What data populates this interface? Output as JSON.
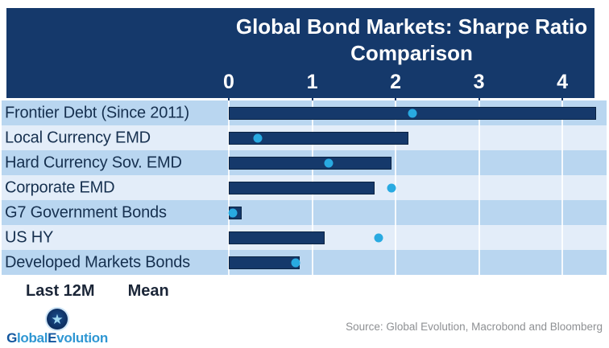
{
  "header": {
    "title_line1": "Global Bond Markets: Sharpe Ratio",
    "title_line2": "Comparison"
  },
  "chart_data": {
    "type": "bar",
    "orientation": "horizontal",
    "title": "Global Bond Markets: Sharpe Ratio Comparison",
    "categories": [
      "Frontier Debt (Since 2011)",
      "Local Currency EMD",
      "Hard Currency Sov. EMD",
      "Corporate EMD",
      "G7 Government Bonds",
      "US HY",
      "Developed Markets Bonds"
    ],
    "series": [
      {
        "name": "Last 12M",
        "style": "bar",
        "color": "#15396b",
        "values": [
          4.4,
          2.15,
          1.95,
          1.75,
          0.15,
          1.15,
          0.85
        ]
      },
      {
        "name": "Mean",
        "style": "dot",
        "color": "#29aae1",
        "values": [
          2.2,
          0.35,
          1.2,
          1.95,
          0.05,
          1.8,
          0.8
        ]
      }
    ],
    "xlim": [
      0,
      4.53
    ],
    "x_ticks": [
      0,
      1,
      2,
      3,
      4
    ],
    "grid": true,
    "legend_position": "bottom-left",
    "row_colors": [
      "#b9d6f0",
      "#e3edf9"
    ]
  },
  "legend": {
    "items": [
      {
        "label": "Last 12M",
        "color": "#15396b",
        "shape": "square"
      },
      {
        "label": "Mean",
        "color": "#29aae1",
        "shape": "circle"
      }
    ]
  },
  "footer": {
    "source": "Source: Global Evolution, Macrobond and Bloomberg",
    "logo": {
      "part1": "G",
      "part2": "lobal",
      "part3": "E",
      "part4": "volution",
      "star": "★"
    }
  },
  "colors": {
    "header_bg": "#15396b",
    "bar_fill": "#15396b",
    "bar_border": "#0a2342",
    "mean_dot": "#29aae1",
    "row_alt_1": "#b9d6f0",
    "row_alt_2": "#e3edf9",
    "label_text": "#16304f",
    "source_text": "#8e9093"
  }
}
